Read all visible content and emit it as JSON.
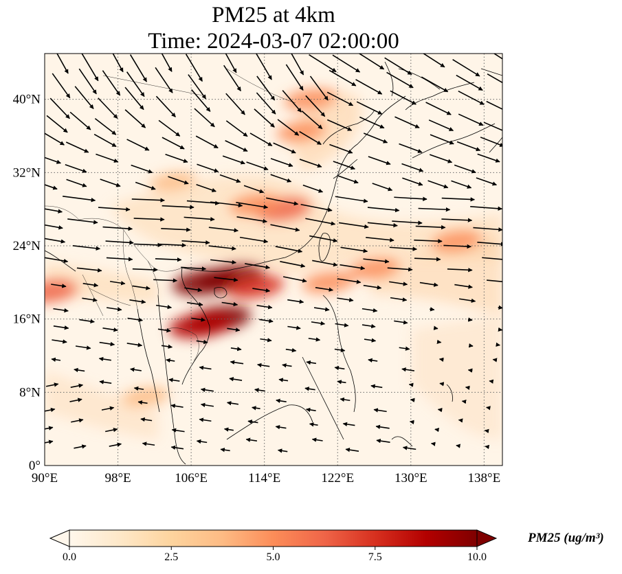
{
  "title": {
    "line1": "PM25 at 4km",
    "line2": "Time: 2024-03-07 02:00:00"
  },
  "map": {
    "lon_range": [
      90,
      140
    ],
    "lat_range": [
      0,
      45
    ],
    "x_ticks": [
      "90°E",
      "98°E",
      "106°E",
      "114°E",
      "122°E",
      "130°E",
      "138°E"
    ],
    "x_tick_values": [
      90,
      98,
      106,
      114,
      122,
      130,
      138
    ],
    "y_ticks": [
      "0°",
      "8°N",
      "16°N",
      "24°N",
      "32°N",
      "40°N"
    ],
    "y_tick_values": [
      0,
      8,
      16,
      24,
      32,
      40
    ],
    "gridlines": true,
    "colormap": "OrRd",
    "plumes": [
      {
        "lon": 107.5,
        "lat": 20.0,
        "value": 9.8
      },
      {
        "lon": 110.5,
        "lat": 20.5,
        "value": 9.5
      },
      {
        "lon": 113.0,
        "lat": 19.5,
        "value": 7.2
      },
      {
        "lon": 109.0,
        "lat": 16.0,
        "value": 9.8
      },
      {
        "lon": 107.0,
        "lat": 15.3,
        "value": 9.2
      },
      {
        "lon": 116.0,
        "lat": 28.0,
        "value": 6.5
      },
      {
        "lon": 113.0,
        "lat": 28.5,
        "value": 5.0
      },
      {
        "lon": 119.0,
        "lat": 40.0,
        "value": 5.5
      },
      {
        "lon": 118.0,
        "lat": 36.5,
        "value": 4.5
      },
      {
        "lon": 121.0,
        "lat": 20.0,
        "value": 5.5
      },
      {
        "lon": 126.0,
        "lat": 21.5,
        "value": 5.0
      },
      {
        "lon": 135.0,
        "lat": 24.5,
        "value": 4.8
      },
      {
        "lon": 90.5,
        "lat": 19.0,
        "value": 6.5
      },
      {
        "lon": 104.0,
        "lat": 31.0,
        "value": 3.5
      },
      {
        "lon": 101.0,
        "lat": 7.5,
        "value": 4.0
      }
    ]
  },
  "colorbar": {
    "label": "PM25 (ug/m³)",
    "ticks": [
      "0.0",
      "2.5",
      "5.0",
      "7.5",
      "10.0"
    ],
    "tick_values": [
      0,
      2.5,
      5,
      7.5,
      10
    ],
    "colors": [
      "#fff7ec",
      "#fee8c8",
      "#fdd49e",
      "#fdbb84",
      "#fc8d59",
      "#ef6548",
      "#d7301f",
      "#b30000",
      "#7f0000"
    ]
  }
}
